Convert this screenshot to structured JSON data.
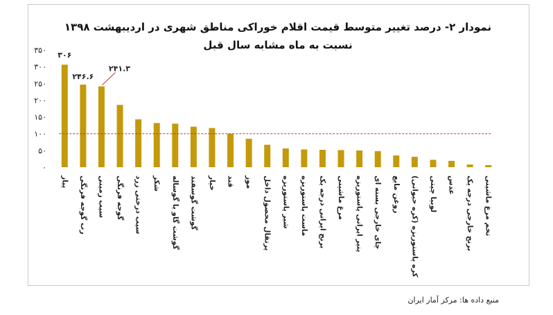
{
  "chart_data": {
    "type": "bar",
    "title": "نمودار ۲- درصد تغییر متوسط قیمت اقلام خوراکی مناطق شهری در اردیبهشت ۱۳۹۸",
    "subtitle": "نسبت به ماه مشابه سال قبل",
    "source": "منبع داده ها: مرکز آمار ایران",
    "categories": [
      "پیاز",
      "رب گوجه فرنگی",
      "سیب زمینی",
      "گوجه فرنگی",
      "سیب درختی زرد",
      "شکر",
      "گوشت گاو یا گوساله",
      "گوشت گوسفند",
      "خیار",
      "قند",
      "موز",
      "پرتقال محصول داخل",
      "شیر پاستوریزه",
      "ماست پاستوریزه",
      "برنج ایرانی درجه یک",
      "مرغ ماشینی",
      "پنیر ایرانی پاستوریزه",
      "چای خارجی بسته ای",
      "روغن مایع",
      "کره پاستوریزه (کره حیوانی)",
      "لوبیا چیتی",
      "عدس",
      "برنج خارجی درجه یک",
      "تخم مرغ ماشینی"
    ],
    "values": [
      306,
      246.6,
      241.3,
      186,
      143,
      132,
      130,
      121,
      117,
      100,
      85,
      67,
      56,
      53,
      52,
      51,
      50,
      48,
      35,
      31,
      22,
      19,
      8,
      0
    ],
    "data_labels": [
      {
        "index": 0,
        "text": "۳۰۶"
      },
      {
        "index": 1,
        "text": "۲۴۶.۶"
      },
      {
        "index": 2,
        "text": "۲۴۱.۳"
      }
    ],
    "ylim": [
      0,
      350
    ],
    "yticks": [
      0,
      50,
      100,
      150,
      200,
      250,
      300,
      350
    ],
    "ytick_labels": [
      "۰",
      "۵۰",
      "۱۰۰",
      "۱۵۰",
      "۲۰۰",
      "۲۵۰",
      "۳۰۰",
      "۳۵۰"
    ],
    "reference_line": 100,
    "colors": {
      "bar": "#C49A0B",
      "reference_line": "#C0392B",
      "label_line": "#C0392B"
    },
    "grid": false,
    "legend": "none"
  }
}
